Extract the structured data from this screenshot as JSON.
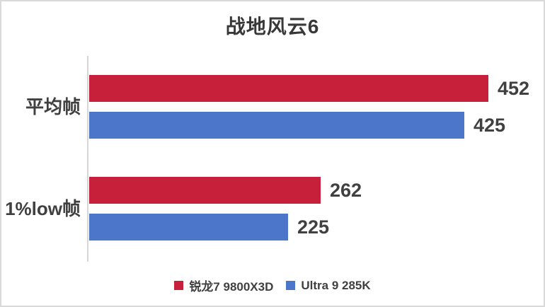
{
  "window": {
    "background": "#ffffff",
    "frame_border_color": "#d9d9d9"
  },
  "chart_data": {
    "type": "bar",
    "orientation": "horizontal",
    "title": "战地风云6",
    "categories": [
      "平均帧",
      "1%low帧"
    ],
    "series": [
      {
        "name": "锐龙7 9800X3D",
        "color": "#c7203b",
        "values": [
          452,
          262
        ]
      },
      {
        "name": "Ultra 9 285K",
        "color": "#4b76c9",
        "values": [
          425,
          225
        ]
      }
    ],
    "xlim": [
      0,
      500
    ],
    "grid": false,
    "legend_position": "bottom",
    "value_labels_shown": true,
    "text_color": "#404040",
    "axis_line_color": "#d6d6d6"
  }
}
